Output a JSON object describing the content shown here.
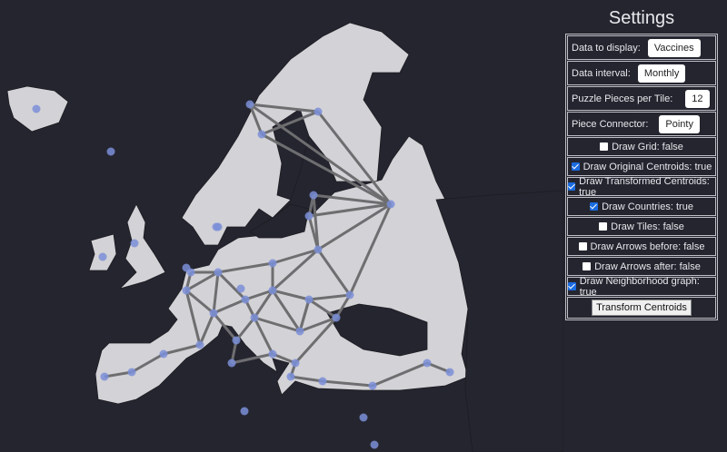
{
  "settings": {
    "title": "Settings",
    "selects": [
      {
        "label": "Data to display:",
        "value": "Vaccines"
      },
      {
        "label": "Data interval:",
        "value": "Monthly"
      },
      {
        "label": "Puzzle Pieces per Tile:",
        "value": "12"
      },
      {
        "label": "Piece Connector:",
        "value": "Pointy"
      }
    ],
    "checkboxes": [
      {
        "label": "Draw Grid: false",
        "checked": false
      },
      {
        "label": "Draw Original Centroids: true",
        "checked": true
      },
      {
        "label": "Draw Transformed Centroids: true",
        "checked": true
      },
      {
        "label": "Draw Countries: true",
        "checked": true
      },
      {
        "label": "Draw Tiles: false",
        "checked": false
      },
      {
        "label": "Draw Arrows before: false",
        "checked": false
      },
      {
        "label": "Draw Arrows after: false",
        "checked": false
      },
      {
        "label": "Draw Neighborhood graph: true",
        "checked": true
      }
    ],
    "transform_button": "Transform Centroids"
  },
  "colors": {
    "background": "#24252f",
    "land": "#d3d2d6",
    "edge": "#6e6e70",
    "centroid": "#7b8fd8"
  }
}
